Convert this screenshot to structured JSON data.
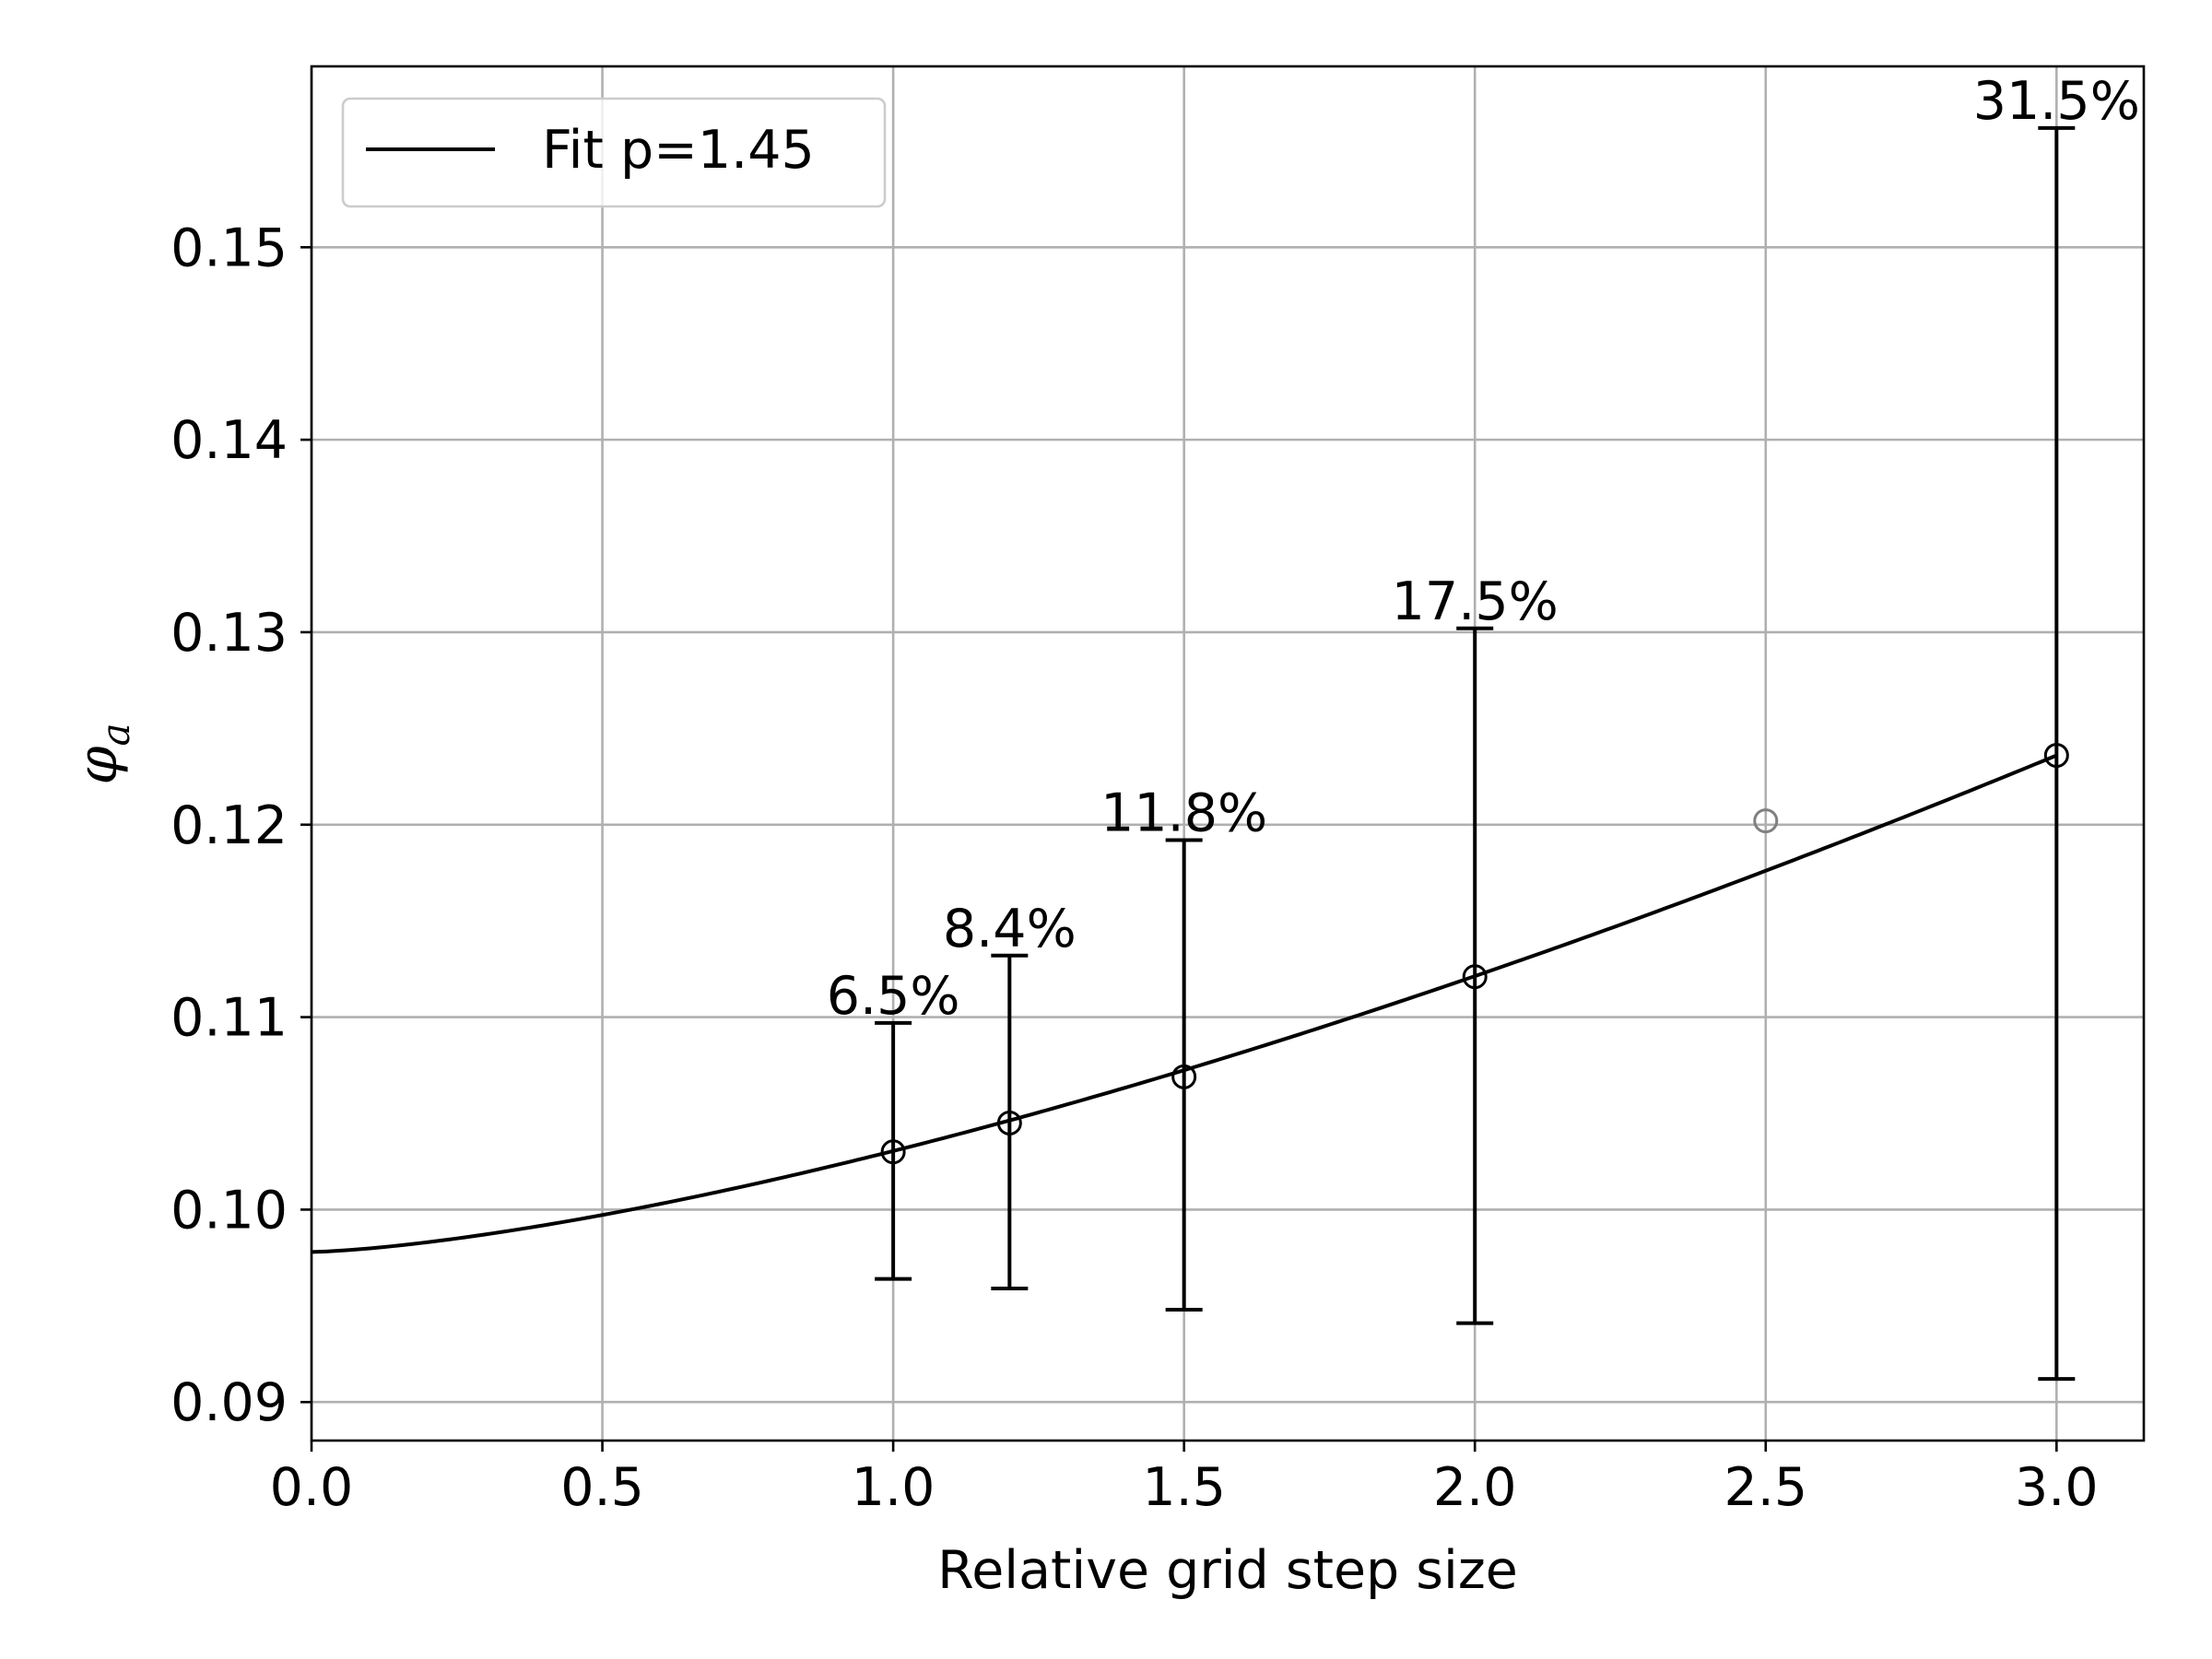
{
  "chart_data": {
    "type": "scatter",
    "xlabel": "Relative grid step size",
    "ylabel_symbol": "φ",
    "ylabel_subscript": "a",
    "xlim": [
      0.0,
      3.15
    ],
    "ylim": [
      0.088,
      0.1594
    ],
    "x_ticks": [
      "0.0",
      "0.5",
      "1.0",
      "1.5",
      "2.0",
      "2.5",
      "3.0"
    ],
    "y_ticks": [
      "0.09",
      "0.10",
      "0.11",
      "0.12",
      "0.13",
      "0.14",
      "0.15"
    ],
    "grid": true,
    "legend": {
      "placement": "top-left",
      "entries": [
        "Fit p=1.45"
      ]
    },
    "fit": {
      "name": "Fit p=1.45",
      "p": 1.45,
      "y0": 0.0978,
      "x": [
        0.0,
        0.25,
        0.5,
        0.75,
        1.0,
        1.2,
        1.5,
        1.75,
        2.0,
        2.25,
        2.5,
        2.75,
        3.0
      ],
      "y": [
        0.0978,
        0.0985,
        0.0997,
        0.1012,
        0.1029,
        0.1045,
        0.1069,
        0.1094,
        0.1121,
        0.1148,
        0.1176,
        0.1205,
        0.1236
      ]
    },
    "points": [
      {
        "x": 1.0,
        "y": 0.103,
        "yerr_low": 0.0964,
        "yerr_high": 0.1097,
        "label": "6.5%"
      },
      {
        "x": 1.2,
        "y": 0.1045,
        "yerr_low": 0.0959,
        "yerr_high": 0.1132,
        "label": "8.4%"
      },
      {
        "x": 1.5,
        "y": 0.1069,
        "yerr_low": 0.0948,
        "yerr_high": 0.1192,
        "label": "11.8%"
      },
      {
        "x": 2.0,
        "y": 0.1121,
        "yerr_low": 0.0941,
        "yerr_high": 0.1302,
        "label": "17.5%"
      },
      {
        "x": 3.0,
        "y": 0.1236,
        "yerr_low": 0.0912,
        "yerr_high": 0.1562,
        "label": "31.5%"
      }
    ],
    "excluded_points": [
      {
        "x": 2.5,
        "y": 0.1202
      }
    ],
    "colors": {
      "data": "#000000",
      "excluded": "#808080",
      "grid": "#b0b0b0"
    }
  }
}
